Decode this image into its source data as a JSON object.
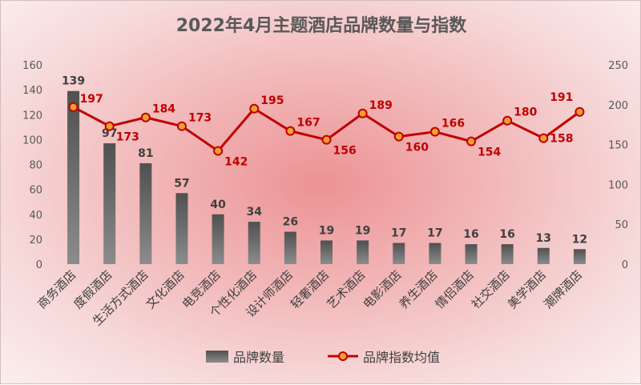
{
  "chart_data": {
    "type": "bar+line",
    "title": "2022年4月主题酒店品牌数量与指数",
    "categories": [
      "商务酒店",
      "度假酒店",
      "生活方式酒店",
      "文化酒店",
      "电竞酒店",
      "个性化酒店",
      "设计师酒店",
      "轻奢酒店",
      "艺术酒店",
      "电影酒店",
      "养生酒店",
      "情侣酒店",
      "社交酒店",
      "美学酒店",
      "潮牌酒店"
    ],
    "series": [
      {
        "name": "品牌数量",
        "type": "bar",
        "axis": "left",
        "values": [
          139,
          97,
          81,
          57,
          40,
          34,
          26,
          19,
          19,
          17,
          17,
          16,
          16,
          13,
          12
        ]
      },
      {
        "name": "品牌指数均值",
        "type": "line",
        "axis": "right",
        "values": [
          197,
          173,
          184,
          173,
          142,
          195,
          167,
          156,
          189,
          160,
          166,
          154,
          180,
          158,
          191
        ]
      }
    ],
    "left_axis": {
      "min": 0,
      "max": 160,
      "step": 20,
      "ticks": [
        "0",
        "20",
        "40",
        "60",
        "80",
        "100",
        "120",
        "140",
        "160"
      ]
    },
    "right_axis": {
      "min": 0,
      "max": 250,
      "step": 50,
      "ticks": [
        "0",
        "50",
        "100",
        "150",
        "200",
        "250"
      ]
    },
    "legend": {
      "position": "bottom"
    },
    "colors": {
      "bar_top": "#555555",
      "bar_bottom": "#8a8a8a",
      "line": "#c00000",
      "marker_fill": "#f0a030",
      "line_label": "#c00000"
    }
  }
}
